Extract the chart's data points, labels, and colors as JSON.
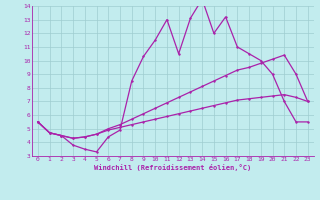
{
  "xlabel": "Windchill (Refroidissement éolien,°C)",
  "xlim": [
    -0.5,
    23.5
  ],
  "ylim": [
    3,
    14
  ],
  "yticks": [
    3,
    4,
    5,
    6,
    7,
    8,
    9,
    10,
    11,
    12,
    13,
    14
  ],
  "xticks": [
    0,
    1,
    2,
    3,
    4,
    5,
    6,
    7,
    8,
    9,
    10,
    11,
    12,
    13,
    14,
    15,
    16,
    17,
    18,
    19,
    20,
    21,
    22,
    23
  ],
  "bg_color": "#c2ecee",
  "grid_color": "#9fcdd0",
  "line_color": "#aa22aa",
  "line1_x": [
    0,
    1,
    2,
    3,
    4,
    5,
    6,
    7,
    8,
    9,
    10,
    11,
    12,
    13,
    14,
    15,
    16,
    17,
    18,
    19,
    20,
    21,
    22,
    23
  ],
  "line1_y": [
    5.5,
    4.7,
    4.5,
    3.8,
    3.5,
    3.3,
    4.4,
    4.9,
    8.5,
    10.3,
    11.5,
    13.0,
    10.5,
    13.1,
    14.5,
    12.0,
    13.2,
    11.0,
    10.5,
    10.0,
    9.0,
    7.0,
    5.5,
    5.5
  ],
  "line2_x": [
    0,
    1,
    2,
    3,
    4,
    5,
    6,
    7,
    8,
    9,
    10,
    11,
    12,
    13,
    14,
    15,
    16,
    17,
    18,
    19,
    20,
    21,
    22,
    23
  ],
  "line2_y": [
    5.5,
    4.7,
    4.5,
    4.3,
    4.4,
    4.6,
    5.0,
    5.3,
    5.7,
    6.1,
    6.5,
    6.9,
    7.3,
    7.7,
    8.1,
    8.5,
    8.9,
    9.3,
    9.5,
    9.8,
    10.1,
    10.4,
    9.0,
    7.0
  ],
  "line3_x": [
    0,
    1,
    2,
    3,
    4,
    5,
    6,
    7,
    8,
    9,
    10,
    11,
    12,
    13,
    14,
    15,
    16,
    17,
    18,
    19,
    20,
    21,
    22,
    23
  ],
  "line3_y": [
    5.5,
    4.7,
    4.5,
    4.3,
    4.4,
    4.6,
    4.9,
    5.1,
    5.3,
    5.5,
    5.7,
    5.9,
    6.1,
    6.3,
    6.5,
    6.7,
    6.9,
    7.1,
    7.2,
    7.3,
    7.4,
    7.5,
    7.3,
    7.0
  ]
}
